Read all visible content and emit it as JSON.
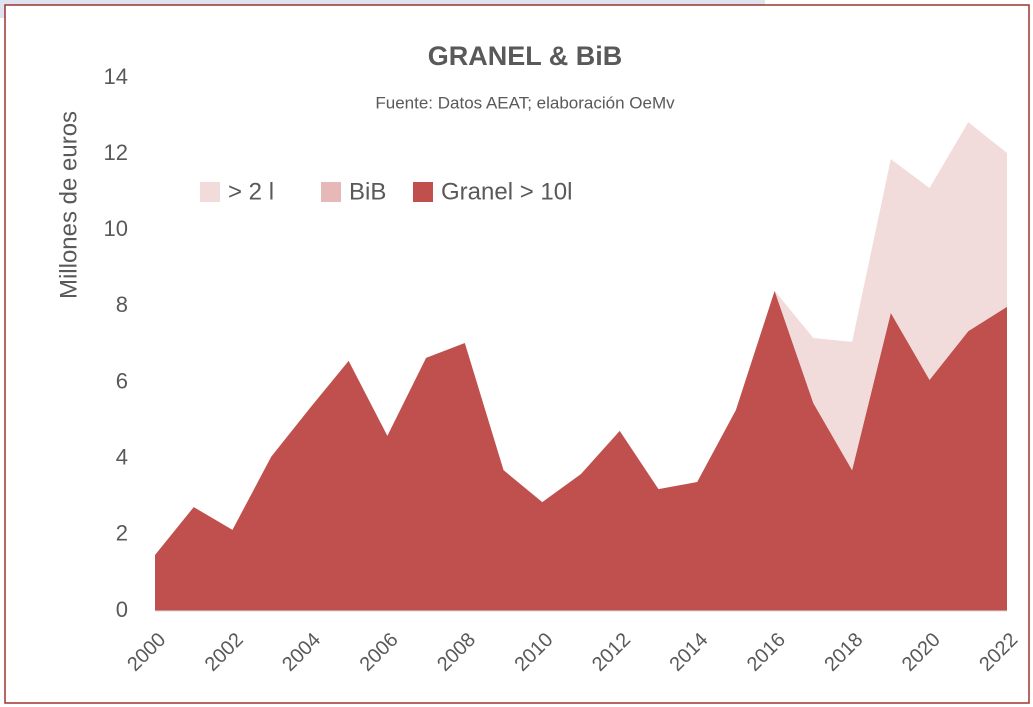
{
  "chart_data": {
    "type": "stacked_area",
    "title": "GRANEL & BiB",
    "subtitle": "Fuente: Datos AEAT; elaboración OeMv",
    "y_label": "Millones de euros",
    "x": [
      2000,
      2001,
      2002,
      2003,
      2004,
      2005,
      2006,
      2007,
      2008,
      2009,
      2010,
      2011,
      2012,
      2013,
      2014,
      2015,
      2016,
      2017,
      2018,
      2019,
      2020,
      2021,
      2022
    ],
    "xlim": [
      2000,
      2022
    ],
    "xticks": [
      2000,
      2002,
      2004,
      2006,
      2008,
      2010,
      2012,
      2014,
      2016,
      2018,
      2020,
      2022
    ],
    "ylim": [
      0,
      14
    ],
    "yticks": [
      0,
      2,
      4,
      6,
      8,
      10,
      12,
      14
    ],
    "grid": false,
    "legend": "top-left",
    "series": [
      {
        "name": "Granel > 10l",
        "color": "#c0504d",
        "values": [
          1.47,
          2.73,
          2.13,
          4.05,
          5.33,
          6.57,
          4.6,
          6.65,
          7.04,
          3.7,
          2.86,
          3.6,
          4.73,
          3.2,
          3.39,
          5.28,
          8.41,
          5.46,
          3.7,
          7.83,
          6.07,
          7.35,
          7.99
        ]
      },
      {
        "name": "BiB",
        "color": "#e6b9b8",
        "values": [
          0,
          0,
          0,
          0,
          0,
          0,
          0,
          0,
          0,
          0,
          0,
          0,
          0,
          0,
          0,
          0,
          0,
          0,
          0,
          0,
          0,
          0,
          0
        ]
      },
      {
        "name": "> 2 l",
        "color": "#f2dcdb",
        "values": [
          0,
          0,
          0,
          0,
          0,
          0,
          0,
          0,
          0,
          0,
          0,
          0,
          0,
          0,
          0,
          0,
          0,
          1.71,
          3.37,
          4.04,
          5.04,
          5.49,
          4.04
        ]
      }
    ]
  }
}
